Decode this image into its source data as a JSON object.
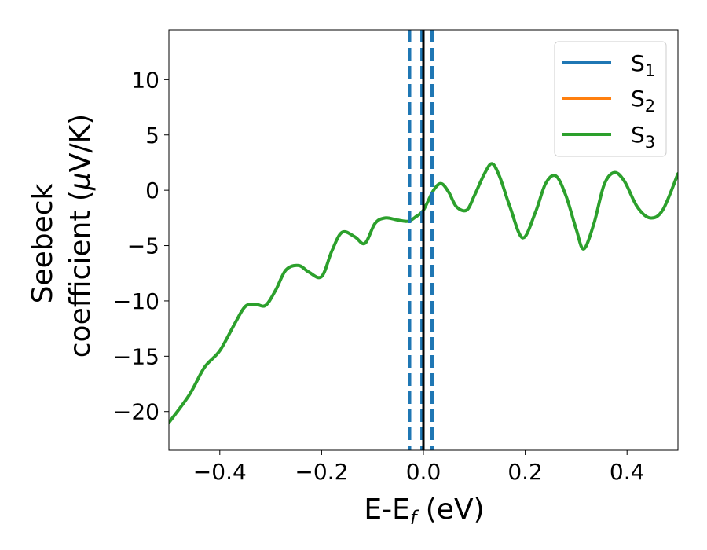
{
  "chart_data": {
    "type": "line",
    "xlabel": "E-E",
    "xlabel_sub": "f",
    "xlabel_unit": " (eV)",
    "ylabel_line1": "Seebeck",
    "ylabel_line2_pre": "coefficient  (",
    "ylabel_mu": "μ",
    "ylabel_line2_post": "V/K)",
    "xlim": [
      -0.5,
      0.5
    ],
    "ylim": [
      -23.5,
      14.5
    ],
    "xticks": [
      -0.4,
      -0.2,
      0.0,
      0.2,
      0.4
    ],
    "xtick_labels": [
      "−0.4",
      "−0.2",
      "0.0",
      "0.2",
      "0.4"
    ],
    "yticks": [
      10,
      5,
      0,
      -5,
      -10,
      -15,
      -20
    ],
    "ytick_labels": [
      "10",
      "5",
      "0",
      "−5",
      "−10",
      "−15",
      "−20"
    ],
    "grid": false,
    "legend_position": "top-right",
    "series": [
      {
        "name": "S",
        "sub": "1",
        "color": "#1f77b4",
        "values": []
      },
      {
        "name": "S",
        "sub": "2",
        "color": "#ff7f0e",
        "values": []
      },
      {
        "name": "S",
        "sub": "3",
        "color": "#2ca02c",
        "x": [
          -0.5,
          -0.46,
          -0.43,
          -0.4,
          -0.37,
          -0.35,
          -0.33,
          -0.31,
          -0.29,
          -0.27,
          -0.245,
          -0.225,
          -0.2,
          -0.18,
          -0.16,
          -0.135,
          -0.115,
          -0.095,
          -0.075,
          -0.05,
          -0.03,
          -0.015,
          0.0,
          0.02,
          0.035,
          0.05,
          0.065,
          0.085,
          0.1,
          0.12,
          0.135,
          0.15,
          0.17,
          0.195,
          0.22,
          0.24,
          0.26,
          0.28,
          0.3,
          0.315,
          0.335,
          0.355,
          0.375,
          0.395,
          0.42,
          0.445,
          0.47,
          0.5
        ],
        "y": [
          -21.0,
          -18.5,
          -16.0,
          -14.5,
          -12.0,
          -10.5,
          -10.3,
          -10.4,
          -9.0,
          -7.2,
          -6.8,
          -7.4,
          -7.8,
          -5.5,
          -3.8,
          -4.2,
          -4.8,
          -3.0,
          -2.5,
          -2.7,
          -2.8,
          -2.4,
          -1.8,
          0.0,
          0.6,
          -0.2,
          -1.5,
          -1.8,
          -0.5,
          1.5,
          2.4,
          1.2,
          -1.5,
          -4.3,
          -2.0,
          0.6,
          1.3,
          -0.5,
          -3.5,
          -5.3,
          -3.0,
          0.5,
          1.6,
          0.8,
          -1.5,
          -2.5,
          -1.8,
          1.5
        ]
      }
    ],
    "vlines": [
      {
        "x": -0.027,
        "style": "dashed",
        "color": "#1f77b4"
      },
      {
        "x": 0.017,
        "style": "dashed",
        "color": "#1f77b4"
      },
      {
        "x": -0.003,
        "style": "dashed",
        "color": "#1f77b4"
      },
      {
        "x": 0.0,
        "style": "solid",
        "color": "#000000"
      }
    ]
  }
}
